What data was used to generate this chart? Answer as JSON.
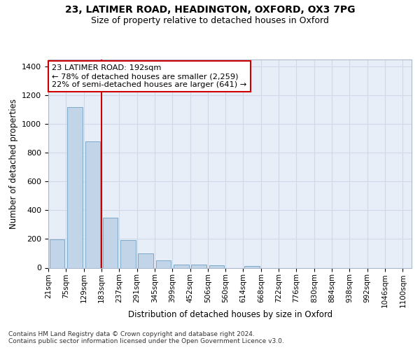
{
  "title1": "23, LATIMER ROAD, HEADINGTON, OXFORD, OX3 7PG",
  "title2": "Size of property relative to detached houses in Oxford",
  "xlabel": "Distribution of detached houses by size in Oxford",
  "ylabel": "Number of detached properties",
  "footer_line1": "Contains HM Land Registry data © Crown copyright and database right 2024.",
  "footer_line2": "Contains public sector information licensed under the Open Government Licence v3.0.",
  "bin_labels": [
    "21sqm",
    "75sqm",
    "129sqm",
    "183sqm",
    "237sqm",
    "291sqm",
    "345sqm",
    "399sqm",
    "452sqm",
    "506sqm",
    "560sqm",
    "614sqm",
    "668sqm",
    "722sqm",
    "776sqm",
    "830sqm",
    "884sqm",
    "938sqm",
    "992sqm",
    "1046sqm",
    "1100sqm"
  ],
  "bar_values": [
    197,
    1120,
    878,
    350,
    192,
    100,
    52,
    22,
    22,
    17,
    0,
    13,
    0,
    0,
    0,
    0,
    0,
    0,
    0,
    0
  ],
  "bar_color": "#c2d4e8",
  "bar_edge_color": "#7da8c8",
  "grid_color": "#d0d9e8",
  "bg_color": "#e8eef8",
  "red_line_x": 2.5,
  "annotation_text": "23 LATIMER ROAD: 192sqm\n← 78% of detached houses are smaller (2,259)\n22% of semi-detached houses are larger (641) →",
  "annotation_box_color": "#ffffff",
  "annotation_border_color": "#cc0000",
  "ylim_max": 1450,
  "yticks": [
    0,
    200,
    400,
    600,
    800,
    1000,
    1200,
    1400
  ]
}
